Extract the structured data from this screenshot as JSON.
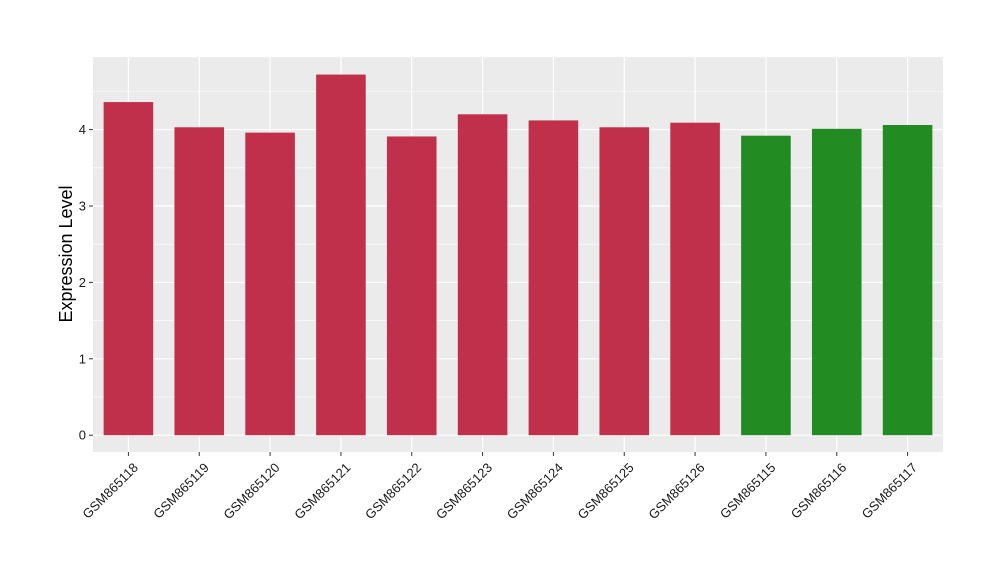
{
  "chart_data": {
    "type": "bar",
    "title": "",
    "xlabel": "",
    "ylabel": "Expression Level",
    "categories": [
      "GSM865118",
      "GSM865119",
      "GSM865120",
      "GSM865121",
      "GSM865122",
      "GSM865123",
      "GSM865124",
      "GSM865125",
      "GSM865126",
      "GSM865115",
      "GSM865116",
      "GSM865117"
    ],
    "values": [
      4.36,
      4.03,
      3.96,
      4.72,
      3.91,
      4.2,
      4.12,
      4.03,
      4.09,
      3.92,
      4.01,
      4.06
    ],
    "groups": [
      "red",
      "red",
      "red",
      "red",
      "red",
      "red",
      "red",
      "red",
      "red",
      "green",
      "green",
      "green"
    ],
    "group_colors": {
      "red": "#c0304a",
      "green": "#228b22"
    },
    "ylim": [
      -0.22,
      4.95
    ],
    "yticks": [
      0,
      1,
      2,
      3,
      4
    ],
    "grid": true,
    "panel_background": "#ebebeb",
    "grid_color": "#ffffff"
  }
}
